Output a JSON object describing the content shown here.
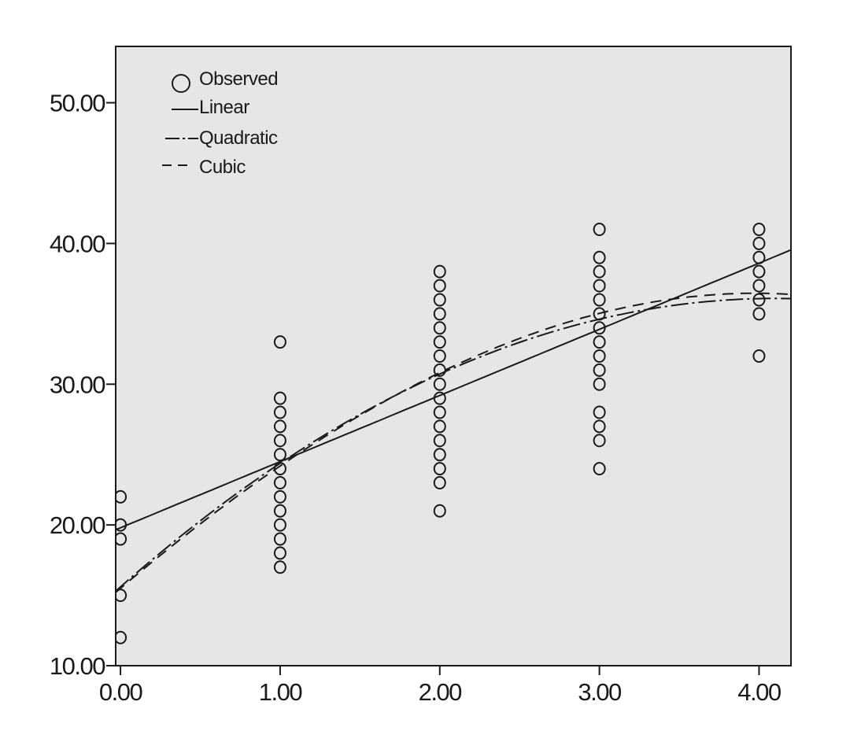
{
  "chart_data": {
    "type": "scatter",
    "title": "",
    "xlabel": "",
    "ylabel": "",
    "xlim": [
      -0.03,
      4.2
    ],
    "ylim": [
      10,
      54
    ],
    "xticks": [
      0,
      1,
      2,
      3,
      4
    ],
    "xtick_labels": [
      "0.00",
      "1.00",
      "2.00",
      "3.00",
      "4.00"
    ],
    "yticks": [
      10,
      20,
      30,
      40,
      50
    ],
    "ytick_labels": [
      "10.00",
      "20.00",
      "30.00",
      "40.00",
      "50.00"
    ],
    "grid": false,
    "legend_position": "top-left",
    "colors": {
      "plot_background": "#e6e6e6",
      "ink": "#1a1a1a",
      "page": "#ffffff"
    },
    "legend": [
      {
        "name": "Observed",
        "marker": "circle"
      },
      {
        "name": "Linear",
        "line": "solid"
      },
      {
        "name": "Quadratic",
        "line": "dash-dot"
      },
      {
        "name": "Cubic",
        "line": "long-dash"
      }
    ],
    "observed": [
      {
        "x": 0,
        "y": [
          12,
          15,
          19,
          20,
          22
        ]
      },
      {
        "x": 1,
        "y": [
          17,
          18,
          19,
          20,
          21,
          22,
          23,
          24,
          25,
          26,
          27,
          28,
          29,
          33
        ]
      },
      {
        "x": 2,
        "y": [
          21,
          23,
          24,
          25,
          26,
          27,
          28,
          29,
          30,
          31,
          32,
          33,
          34,
          35,
          36,
          37,
          38
        ]
      },
      {
        "x": 3,
        "y": [
          24,
          26,
          27,
          28,
          30,
          31,
          32,
          33,
          34,
          35,
          36,
          37,
          38,
          39,
          41
        ]
      },
      {
        "x": 4,
        "y": [
          32,
          35,
          36,
          37,
          38,
          39,
          40,
          41
        ]
      }
    ],
    "fits": [
      {
        "name": "Linear",
        "coefficients": [
          19.8,
          4.7
        ]
      },
      {
        "name": "Quadratic",
        "coefficients": [
          15.6,
          10.0,
          -1.22
        ]
      },
      {
        "name": "Cubic",
        "coefficients": [
          15.5,
          9.6,
          -0.85,
          -0.06
        ]
      }
    ]
  }
}
